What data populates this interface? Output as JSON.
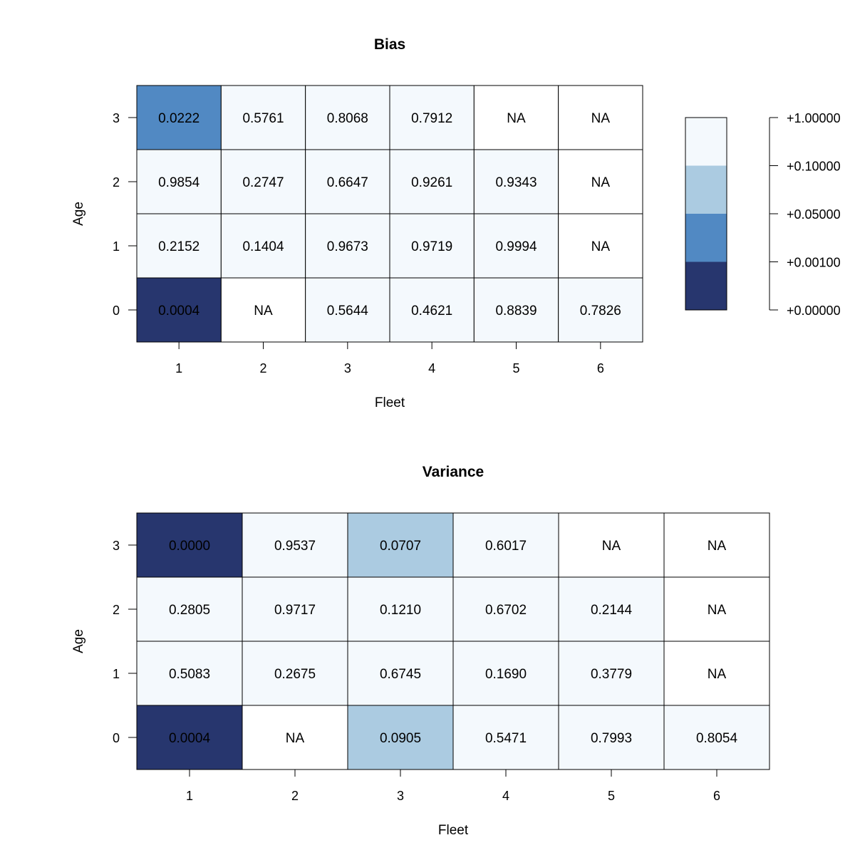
{
  "chart_data": [
    {
      "type": "heatmap",
      "title": "Bias",
      "xlabel": "Fleet",
      "ylabel": "Age",
      "x_categories": [
        "1",
        "2",
        "3",
        "4",
        "5",
        "6"
      ],
      "y_categories": [
        "0",
        "1",
        "2",
        "3"
      ],
      "rows": [
        {
          "age": "0",
          "values": [
            "0.0004",
            "NA",
            "0.5644",
            "0.4621",
            "0.8839",
            "0.7826"
          ]
        },
        {
          "age": "1",
          "values": [
            "0.2152",
            "0.1404",
            "0.9673",
            "0.9719",
            "0.9994",
            "NA"
          ]
        },
        {
          "age": "2",
          "values": [
            "0.9854",
            "0.2747",
            "0.6647",
            "0.9261",
            "0.9343",
            "NA"
          ]
        },
        {
          "age": "3",
          "values": [
            "0.0222",
            "0.5761",
            "0.8068",
            "0.7912",
            "NA",
            "NA"
          ]
        }
      ],
      "legend": {
        "placement": "right",
        "breaks": [
          "+0.00000",
          "+0.00100",
          "+0.05000",
          "+0.10000",
          "+1.00000"
        ],
        "colors": [
          "#27366e",
          "#5189c3",
          "#abcbe1",
          "#f4f9fd"
        ]
      }
    },
    {
      "type": "heatmap",
      "title": "Variance",
      "xlabel": "Fleet",
      "ylabel": "Age",
      "x_categories": [
        "1",
        "2",
        "3",
        "4",
        "5",
        "6"
      ],
      "y_categories": [
        "0",
        "1",
        "2",
        "3"
      ],
      "rows": [
        {
          "age": "0",
          "values": [
            "0.0004",
            "NA",
            "0.0905",
            "0.5471",
            "0.7993",
            "0.8054"
          ]
        },
        {
          "age": "1",
          "values": [
            "0.5083",
            "0.2675",
            "0.6745",
            "0.1690",
            "0.3779",
            "NA"
          ]
        },
        {
          "age": "2",
          "values": [
            "0.2805",
            "0.9717",
            "0.1210",
            "0.6702",
            "0.2144",
            "NA"
          ]
        },
        {
          "age": "3",
          "values": [
            "0.0000",
            "0.9537",
            "0.0707",
            "0.6017",
            "NA",
            "NA"
          ]
        }
      ]
    }
  ],
  "colors": {
    "na": "#ffffff",
    "grid_line": "#000000"
  }
}
